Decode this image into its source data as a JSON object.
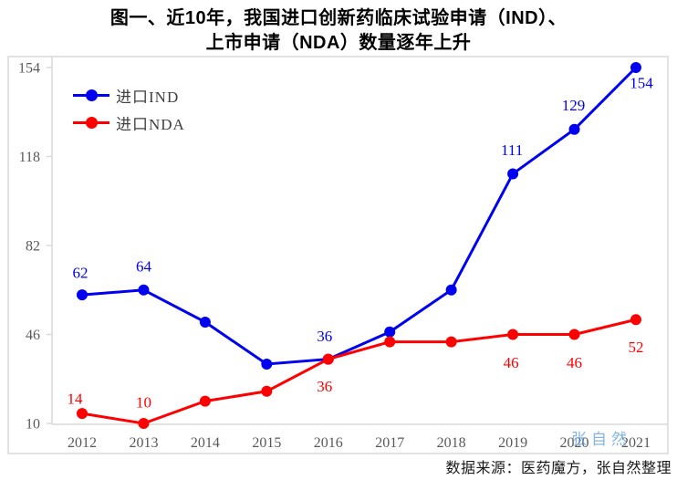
{
  "title": {
    "line1": "图一、近10年，我国进口创新药临床试验申请（IND）、",
    "line2": "上市申请（NDA）数量逐年上升"
  },
  "source_note": "数据来源：医药魔方，张自然整理",
  "watermark": "张自然",
  "colors": {
    "ind_blue": "#0000f0",
    "nda_red": "#ff0000",
    "axis_gray": "#d9d9d9",
    "tick_label_gray": "#595959",
    "watermark_blue": "#5b9bd5",
    "title_black": "#000000"
  },
  "chart_data": {
    "type": "line",
    "x": [
      2012,
      2013,
      2014,
      2015,
      2016,
      2017,
      2018,
      2019,
      2020,
      2021
    ],
    "ylim": [
      10,
      154
    ],
    "yticks": [
      10,
      46,
      82,
      118,
      154
    ],
    "grid": false,
    "legend_position": "top-left-inside",
    "series": [
      {
        "name": "进口IND",
        "color_key": "ind_blue",
        "values": [
          62,
          64,
          51,
          34,
          36,
          47,
          64,
          111,
          129,
          154
        ],
        "labeled_years": [
          2012,
          2013,
          2016,
          2019,
          2020,
          2021
        ]
      },
      {
        "name": "进口NDA",
        "color_key": "nda_red",
        "values": [
          14,
          10,
          19,
          23,
          36,
          43,
          43,
          46,
          46,
          52
        ],
        "labeled_years": [
          2012,
          2013,
          2016,
          2019,
          2020,
          2021
        ]
      }
    ]
  }
}
